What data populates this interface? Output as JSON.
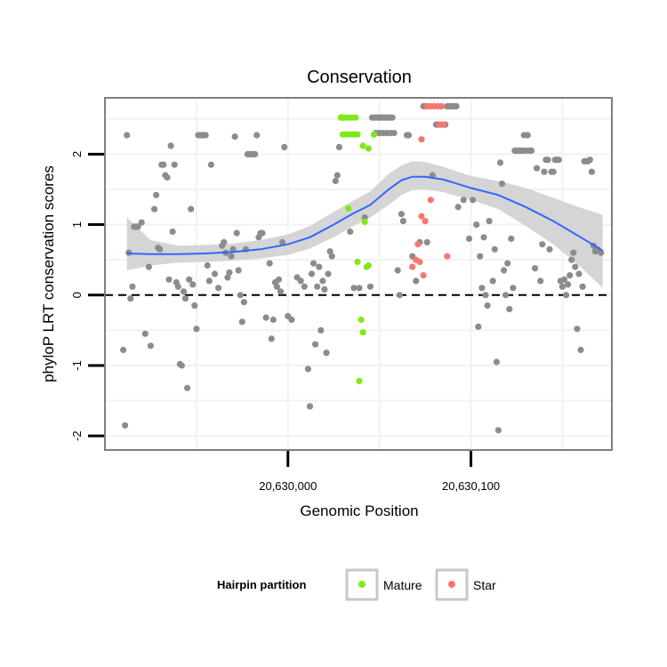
{
  "chart_data": {
    "type": "scatter",
    "title": "Conservation",
    "xlabel": "Genomic Position",
    "ylabel": "phyloP LRT conservation scores",
    "xlim": [
      20629900,
      20630177
    ],
    "ylim": [
      -2.2,
      2.8
    ],
    "x_ticks": [
      {
        "value": 20630000,
        "label": "20,630,000"
      },
      {
        "value": 20630100,
        "label": "20,630,100"
      }
    ],
    "y_ticks": [
      {
        "value": -2,
        "label": "-2"
      },
      {
        "value": -1,
        "label": "-1"
      },
      {
        "value": 0,
        "label": "0"
      },
      {
        "value": 1,
        "label": "1"
      },
      {
        "value": 2,
        "label": "2"
      }
    ],
    "reference_line": {
      "y": 0,
      "style": "dashed"
    },
    "legend": {
      "title": "Hairpin partition",
      "position": "bottom",
      "entries": [
        {
          "label": "Mature",
          "color": "#7FE817"
        },
        {
          "label": "Star",
          "color": "#F8766D"
        }
      ]
    },
    "colors": {
      "other": "#8C8C8C",
      "Mature": "#7FE817",
      "Star": "#F8766D",
      "smooth": "#3366FF",
      "band": "#D3D3D3",
      "panel_border": "#7F7F7F",
      "grid": "#F2F2F2"
    },
    "smooth_curve": {
      "x": [
        20629912,
        20629925,
        20629940,
        20629955,
        20629970,
        20629985,
        20630000,
        20630012,
        20630025,
        20630035,
        20630045,
        20630055,
        20630062,
        20630068,
        20630075,
        20630085,
        20630100,
        20630115,
        20630130,
        20630145,
        20630160,
        20630172
      ],
      "y": [
        0.59,
        0.58,
        0.58,
        0.59,
        0.61,
        0.65,
        0.72,
        0.82,
        1.0,
        1.15,
        1.28,
        1.5,
        1.63,
        1.68,
        1.68,
        1.64,
        1.52,
        1.42,
        1.25,
        1.05,
        0.82,
        0.63
      ],
      "lower": [
        0.35,
        0.42,
        0.46,
        0.47,
        0.49,
        0.52,
        0.57,
        0.66,
        0.82,
        0.97,
        1.1,
        1.28,
        1.42,
        1.49,
        1.5,
        1.46,
        1.35,
        1.22,
        0.98,
        0.72,
        0.4,
        0.1
      ],
      "upper": [
        1.1,
        0.78,
        0.7,
        0.71,
        0.73,
        0.78,
        0.86,
        0.98,
        1.18,
        1.33,
        1.47,
        1.72,
        1.84,
        1.9,
        1.89,
        1.82,
        1.69,
        1.62,
        1.52,
        1.38,
        1.24,
        1.14
      ]
    },
    "series": [
      {
        "name": "other",
        "points": [
          [
            20629912,
            2.27
          ],
          [
            20629913,
            0.6
          ],
          [
            20629914,
            -0.05
          ],
          [
            20629915,
            0.12
          ],
          [
            20629916,
            0.97
          ],
          [
            20629917,
            0.97
          ],
          [
            20629918,
            0.97
          ],
          [
            20629920,
            1.03
          ],
          [
            20629910,
            -0.78
          ],
          [
            20629911,
            -1.85
          ],
          [
            20629922,
            -0.55
          ],
          [
            20629924,
            0.4
          ],
          [
            20629925,
            -0.72
          ],
          [
            20629927,
            1.22
          ],
          [
            20629928,
            1.42
          ],
          [
            20629929,
            0.67
          ],
          [
            20629930,
            0.65
          ],
          [
            20629931,
            1.85
          ],
          [
            20629932,
            1.85
          ],
          [
            20629933,
            1.7
          ],
          [
            20629934,
            1.67
          ],
          [
            20629935,
            0.22
          ],
          [
            20629936,
            2.12
          ],
          [
            20629937,
            0.9
          ],
          [
            20629938,
            1.85
          ],
          [
            20629939,
            0.18
          ],
          [
            20629940,
            0.12
          ],
          [
            20629941,
            -0.98
          ],
          [
            20629942,
            -1.0
          ],
          [
            20629943,
            0.05
          ],
          [
            20629944,
            -0.05
          ],
          [
            20629945,
            -1.32
          ],
          [
            20629946,
            0.22
          ],
          [
            20629947,
            1.22
          ],
          [
            20629948,
            0.15
          ],
          [
            20629949,
            -0.15
          ],
          [
            20629950,
            -0.48
          ],
          [
            20629951,
            2.27
          ],
          [
            20629952,
            2.27
          ],
          [
            20629953,
            2.27
          ],
          [
            20629954,
            2.27
          ],
          [
            20629955,
            2.27
          ],
          [
            20629956,
            0.42
          ],
          [
            20629957,
            0.2
          ],
          [
            20629958,
            1.85
          ],
          [
            20629960,
            0.3
          ],
          [
            20629962,
            0.1
          ],
          [
            20629964,
            0.7
          ],
          [
            20629965,
            0.75
          ],
          [
            20629966,
            0.6
          ],
          [
            20629967,
            0.25
          ],
          [
            20629968,
            0.32
          ],
          [
            20629969,
            0.55
          ],
          [
            20629970,
            0.65
          ],
          [
            20629971,
            2.25
          ],
          [
            20629972,
            0.88
          ],
          [
            20629973,
            0.35
          ],
          [
            20629974,
            0.0
          ],
          [
            20629975,
            -0.38
          ],
          [
            20629976,
            -0.1
          ],
          [
            20629977,
            0.65
          ],
          [
            20629978,
            2.0
          ],
          [
            20629979,
            2.0
          ],
          [
            20629980,
            2.0
          ],
          [
            20629981,
            2.0
          ],
          [
            20629982,
            2.0
          ],
          [
            20629983,
            2.27
          ],
          [
            20629984,
            0.82
          ],
          [
            20629985,
            0.88
          ],
          [
            20629986,
            0.88
          ],
          [
            20629988,
            -0.32
          ],
          [
            20629990,
            0.45
          ],
          [
            20629991,
            -0.62
          ],
          [
            20629992,
            -0.35
          ],
          [
            20629993,
            0.18
          ],
          [
            20629994,
            0.12
          ],
          [
            20629995,
            0.22
          ],
          [
            20629996,
            0.05
          ],
          [
            20629997,
            0.75
          ],
          [
            20629998,
            2.1
          ],
          [
            20630000,
            -0.3
          ],
          [
            20630002,
            -0.35
          ],
          [
            20630005,
            0.25
          ],
          [
            20630007,
            0.2
          ],
          [
            20630009,
            0.12
          ],
          [
            20630011,
            -1.05
          ],
          [
            20630012,
            -1.58
          ],
          [
            20630013,
            0.3
          ],
          [
            20630014,
            0.45
          ],
          [
            20630015,
            -0.7
          ],
          [
            20630016,
            0.12
          ],
          [
            20630017,
            0.4
          ],
          [
            20630018,
            -0.5
          ],
          [
            20630019,
            0.2
          ],
          [
            20630020,
            0.08
          ],
          [
            20630021,
            -0.82
          ],
          [
            20630022,
            0.3
          ],
          [
            20630023,
            0.62
          ],
          [
            20630024,
            0.55
          ],
          [
            20630026,
            1.62
          ],
          [
            20630027,
            1.7
          ],
          [
            20630028,
            2.1
          ],
          [
            20630029,
            2.52
          ],
          [
            20630030,
            2.52
          ],
          [
            20630034,
            0.9
          ],
          [
            20630036,
            0.1
          ],
          [
            20630039,
            0.1
          ],
          [
            20630042,
            1.1
          ],
          [
            20630045,
            0.12
          ],
          [
            20630046,
            2.52
          ],
          [
            20630047,
            2.52
          ],
          [
            20630048,
            2.52
          ],
          [
            20630049,
            2.52
          ],
          [
            20630050,
            2.52
          ],
          [
            20630051,
            2.52
          ],
          [
            20630052,
            2.52
          ],
          [
            20630053,
            2.52
          ],
          [
            20630054,
            2.52
          ],
          [
            20630055,
            2.52
          ],
          [
            20630056,
            2.52
          ],
          [
            20630057,
            2.52
          ],
          [
            20630048,
            2.3
          ],
          [
            20630050,
            2.3
          ],
          [
            20630052,
            2.3
          ],
          [
            20630054,
            2.3
          ],
          [
            20630056,
            2.3
          ],
          [
            20630058,
            2.3
          ],
          [
            20630060,
            0.35
          ],
          [
            20630061,
            0.0
          ],
          [
            20630062,
            1.15
          ],
          [
            20630063,
            1.05
          ],
          [
            20630065,
            2.27
          ],
          [
            20630066,
            2.27
          ],
          [
            20630068,
            0.55
          ],
          [
            20630070,
            0.2
          ],
          [
            20630072,
            0.75
          ],
          [
            20630074,
            2.68
          ],
          [
            20630075,
            2.68
          ],
          [
            20630076,
            0.75
          ],
          [
            20630079,
            1.7
          ],
          [
            20630080,
            2.68
          ],
          [
            20630081,
            2.42
          ],
          [
            20630082,
            2.42
          ],
          [
            20630084,
            2.42
          ],
          [
            20630086,
            2.42
          ],
          [
            20630087,
            2.68
          ],
          [
            20630088,
            2.68
          ],
          [
            20630089,
            2.68
          ],
          [
            20630090,
            2.68
          ],
          [
            20630091,
            2.68
          ],
          [
            20630092,
            2.68
          ],
          [
            20630093,
            1.25
          ],
          [
            20630096,
            1.35
          ],
          [
            20630099,
            0.8
          ],
          [
            20630101,
            1.35
          ],
          [
            20630103,
            1.0
          ],
          [
            20630104,
            -0.45
          ],
          [
            20630105,
            0.55
          ],
          [
            20630106,
            0.1
          ],
          [
            20630107,
            0.82
          ],
          [
            20630108,
            0.0
          ],
          [
            20630109,
            -0.15
          ],
          [
            20630110,
            1.05
          ],
          [
            20630112,
            0.2
          ],
          [
            20630113,
            0.65
          ],
          [
            20630114,
            -0.95
          ],
          [
            20630115,
            -1.92
          ],
          [
            20630116,
            1.88
          ],
          [
            20630117,
            1.58
          ],
          [
            20630118,
            0.35
          ],
          [
            20630119,
            0.0
          ],
          [
            20630120,
            0.45
          ],
          [
            20630121,
            -0.2
          ],
          [
            20630122,
            0.8
          ],
          [
            20630123,
            0.1
          ],
          [
            20630124,
            2.05
          ],
          [
            20630125,
            2.05
          ],
          [
            20630126,
            2.05
          ],
          [
            20630127,
            2.05
          ],
          [
            20630128,
            2.05
          ],
          [
            20630129,
            2.27
          ],
          [
            20630130,
            2.05
          ],
          [
            20630131,
            2.27
          ],
          [
            20630132,
            2.05
          ],
          [
            20630133,
            2.05
          ],
          [
            20630135,
            0.38
          ],
          [
            20630136,
            1.8
          ],
          [
            20630138,
            0.2
          ],
          [
            20630139,
            0.72
          ],
          [
            20630140,
            1.75
          ],
          [
            20630141,
            1.92
          ],
          [
            20630142,
            1.92
          ],
          [
            20630143,
            0.65
          ],
          [
            20630144,
            1.75
          ],
          [
            20630145,
            1.75
          ],
          [
            20630146,
            1.92
          ],
          [
            20630147,
            1.92
          ],
          [
            20630148,
            1.92
          ],
          [
            20630149,
            0.2
          ],
          [
            20630150,
            0.12
          ],
          [
            20630151,
            0.22
          ],
          [
            20630152,
            0.0
          ],
          [
            20630153,
            0.15
          ],
          [
            20630154,
            0.28
          ],
          [
            20630155,
            0.5
          ],
          [
            20630156,
            0.6
          ],
          [
            20630157,
            0.4
          ],
          [
            20630158,
            -0.48
          ],
          [
            20630159,
            0.3
          ],
          [
            20630160,
            -0.78
          ],
          [
            20630161,
            0.12
          ],
          [
            20630162,
            1.9
          ],
          [
            20630163,
            1.9
          ],
          [
            20630164,
            1.9
          ],
          [
            20630165,
            1.92
          ],
          [
            20630166,
            1.75
          ],
          [
            20630167,
            0.7
          ],
          [
            20630168,
            0.62
          ],
          [
            20630169,
            0.65
          ],
          [
            20630171,
            0.6
          ]
        ]
      },
      {
        "name": "Mature",
        "points": [
          [
            20630029,
            2.52
          ],
          [
            20630031,
            2.52
          ],
          [
            20630033,
            2.52
          ],
          [
            20630035,
            2.52
          ],
          [
            20630037,
            2.52
          ],
          [
            20630030,
            2.28
          ],
          [
            20630032,
            2.28
          ],
          [
            20630034,
            2.28
          ],
          [
            20630036,
            2.28
          ],
          [
            20630038,
            2.28
          ],
          [
            20630041,
            2.12
          ],
          [
            20630044,
            2.08
          ],
          [
            20630047,
            2.28
          ],
          [
            20630033,
            1.23
          ],
          [
            20630042,
            1.04
          ],
          [
            20630038,
            0.47
          ],
          [
            20630043,
            0.4
          ],
          [
            20630044,
            0.42
          ],
          [
            20630040,
            -0.35
          ],
          [
            20630041,
            -0.53
          ],
          [
            20630039,
            -1.22
          ]
        ]
      },
      {
        "name": "Star",
        "points": [
          [
            20630076,
            2.68
          ],
          [
            20630078,
            2.68
          ],
          [
            20630080,
            2.68
          ],
          [
            20630082,
            2.68
          ],
          [
            20630084,
            2.68
          ],
          [
            20630083,
            2.42
          ],
          [
            20630085,
            2.42
          ],
          [
            20630073,
            2.21
          ],
          [
            20630078,
            1.35
          ],
          [
            20630073,
            1.12
          ],
          [
            20630075,
            1.05
          ],
          [
            20630071,
            0.72
          ],
          [
            20630070,
            0.5
          ],
          [
            20630072,
            0.47
          ],
          [
            20630068,
            0.4
          ],
          [
            20630074,
            0.28
          ],
          [
            20630087,
            0.55
          ]
        ]
      }
    ]
  }
}
